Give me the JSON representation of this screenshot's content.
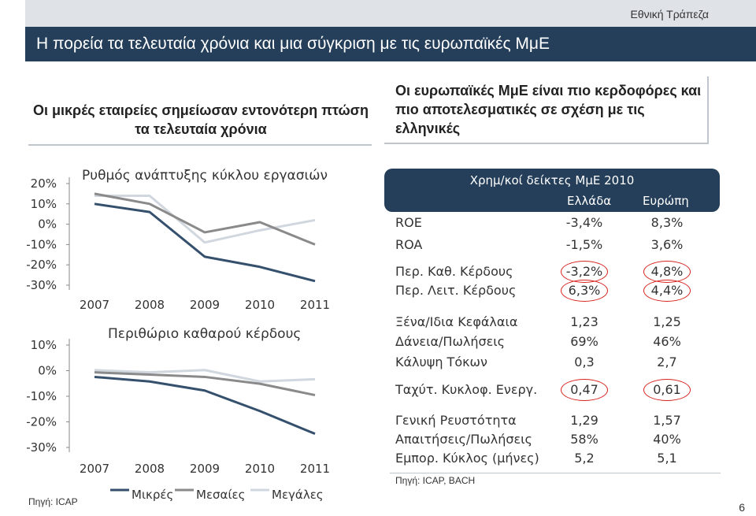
{
  "header": {
    "brand": "Εθνική Τράπεζα",
    "title": "Η πορεία τα τελευταία χρόνια και μια σύγκριση με τις ευρωπαϊκές ΜμΕ"
  },
  "left": {
    "heading": "Οι μικρές εταιρείες σημείωσαν εντονότερη πτώση τα τελευταία χρόνια",
    "source": "Πηγή: ICAP"
  },
  "right": {
    "heading": "Οι ευρωπαϊκές ΜμΕ είναι πιο κερδοφόρες και πιο αποτελεσματικές σε σχέση με τις ελληνικές",
    "source": "Πηγή: ICAP, BACH"
  },
  "colors": {
    "small": "#34506d",
    "medium": "#8a8a8a",
    "large": "#d1d7df",
    "band": "#253f5b",
    "ring": "#d8201c"
  },
  "chart_data": [
    {
      "type": "line",
      "title": "Ρυθμός ανάπτυξης κύκλου εργασιών",
      "x": [
        "2007",
        "2008",
        "2009",
        "2010",
        "2011"
      ],
      "ylim": [
        -30,
        20
      ],
      "yticks": [
        "20%",
        "10%",
        "0%",
        "-10%",
        "-20%",
        "-30%"
      ],
      "series": [
        {
          "name": "Μικρές",
          "values": [
            10,
            6,
            -16,
            -21,
            -28
          ]
        },
        {
          "name": "Μεσαίες",
          "values": [
            15,
            10,
            -4,
            1,
            -10
          ]
        },
        {
          "name": "Μεγάλες",
          "values": [
            14,
            14,
            -9,
            -3,
            2
          ]
        }
      ]
    },
    {
      "type": "line",
      "title": "Περιθώριο καθαρού κέρδους",
      "x": [
        "2007",
        "2008",
        "2009",
        "2010",
        "2011"
      ],
      "ylim": [
        -30,
        15
      ],
      "yticks": [
        "10%",
        "0%",
        "-10%",
        "-20%",
        "-30%"
      ],
      "series": [
        {
          "name": "Μικρές",
          "values": [
            1,
            -1,
            -5,
            -14,
            -24
          ]
        },
        {
          "name": "Μεσαίες",
          "values": [
            3,
            2,
            1,
            -2,
            -7
          ]
        },
        {
          "name": "Μεγάλες",
          "values": [
            4,
            3,
            4,
            -1,
            0
          ]
        }
      ]
    }
  ],
  "ratios": {
    "title": "Χρημ/κοί δείκτες ΜμΕ 2010",
    "col_gr": "Ελλάδα",
    "col_eu": "Ευρώπη",
    "rows": [
      {
        "label": "ROE",
        "gr": "-3,4%",
        "eu": "8,3%"
      },
      {
        "label": "ROA",
        "gr": "-1,5%",
        "eu": "3,6%"
      },
      {
        "label": "Περ. Καθ. Κέρδους",
        "gr": "-3,2%",
        "eu": "4,8%"
      },
      {
        "label": "Περ. Λειτ. Κέρδους",
        "gr": "6,3%",
        "eu": "4,4%"
      },
      {
        "label": "Ξένα/Ιδια Κεφάλαια",
        "gr": "1,23",
        "eu": "1,25"
      },
      {
        "label": "Δάνεια/Πωλήσεις",
        "gr": "69%",
        "eu": "46%"
      },
      {
        "label": "Κάλυψη Τόκων",
        "gr": "0,3",
        "eu": "2,7"
      },
      {
        "label": "Ταχύτ. Κυκλοφ. Ενεργ.",
        "gr": "0,47",
        "eu": "0,61"
      },
      {
        "label": "Γενική Ρευστότητα",
        "gr": "1,29",
        "eu": "1,57"
      },
      {
        "label": "Απαιτήσεις/Πωλήσεις",
        "gr": "58%",
        "eu": "40%"
      },
      {
        "label": "Εμπορ. Κύκλος (μήνες)",
        "gr": "5,2",
        "eu": "5,1"
      }
    ]
  },
  "page_number": "6"
}
